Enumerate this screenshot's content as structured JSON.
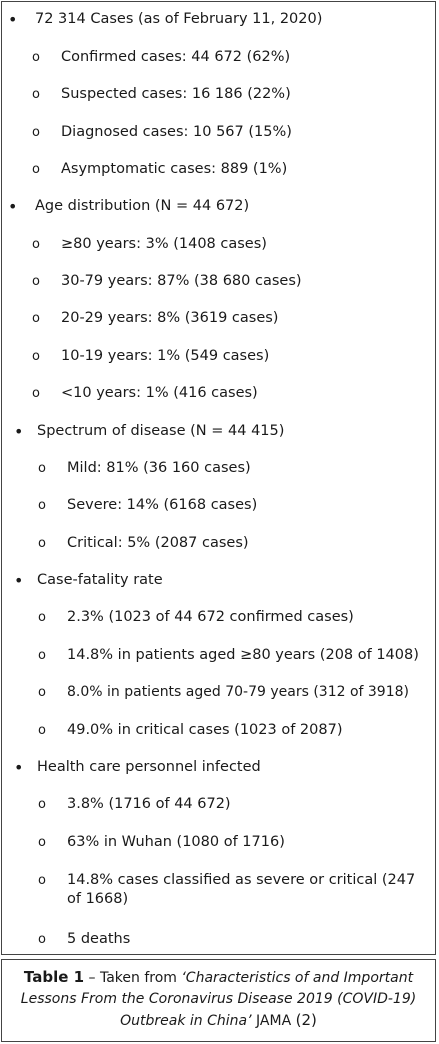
{
  "items": [
    {
      "marker": "•",
      "text": "72 314 Cases (as of February 11, 2020)"
    },
    {
      "marker": "o",
      "text": "Confirmed cases: 44 672 (62%)"
    },
    {
      "marker": "o",
      "text": "Suspected cases: 16 186 (22%)"
    },
    {
      "marker": "o",
      "text": "Diagnosed cases: 10 567 (15%)"
    },
    {
      "marker": "o",
      "text": "Asymptomatic cases: 889 (1%)"
    },
    {
      "marker": "•",
      "text": "Age distribution (N = 44 672)"
    },
    {
      "marker": "o",
      "text": "≥80 years: 3% (1408 cases)"
    },
    {
      "marker": "o",
      "text": "30-79 years: 87% (38 680 cases)"
    },
    {
      "marker": "o",
      "text": "20-29 years: 8% (3619 cases)"
    },
    {
      "marker": "o",
      "text": "10-19 years: 1% (549 cases)"
    },
    {
      "marker": "o",
      "text": "<10 years: 1% (416 cases)"
    },
    {
      "marker": "•",
      "text": "Spectrum of disease (N = 44 415)"
    },
    {
      "marker": "o",
      "text": "Mild: 81% (36 160 cases)"
    },
    {
      "marker": "o",
      "text": "Severe: 14% (6168 cases)"
    },
    {
      "marker": "o",
      "text": "Critical: 5% (2087 cases)"
    },
    {
      "marker": "•",
      "text": "Case-fatality rate"
    },
    {
      "marker": "o",
      "text": "2.3% (1023 of 44 672 confirmed cases)"
    },
    {
      "marker": "o",
      "text": "14.8% in patients aged ≥80 years (208 of 1408)"
    },
    {
      "marker": "o",
      "text": "8.0% in patients aged 70-79 years (312 of 3918)"
    },
    {
      "marker": "o",
      "text": "49.0% in critical cases (1023 of 2087)"
    },
    {
      "marker": "•",
      "text": "Health care personnel infected"
    },
    {
      "marker": "o",
      "text": "3.8% (1716 of 44 672)"
    },
    {
      "marker": "o",
      "text": "63% in Wuhan (1080 of 1716)"
    },
    {
      "marker": "o",
      "text": "14.8% cases classified as severe or critical (247 of 1668)"
    },
    {
      "marker": "o",
      "text": "5 deaths"
    }
  ],
  "caption": {
    "label": "Table 1",
    "dash": " – Taken from ",
    "title_line1": "‘Characteristics of and Important",
    "title_line2": "Lessons From the Coronavirus Disease 2019 (COVID-19)",
    "title_line3": "Outbreak in China’",
    "journal": " JAMA ",
    "ref": "(2)"
  }
}
